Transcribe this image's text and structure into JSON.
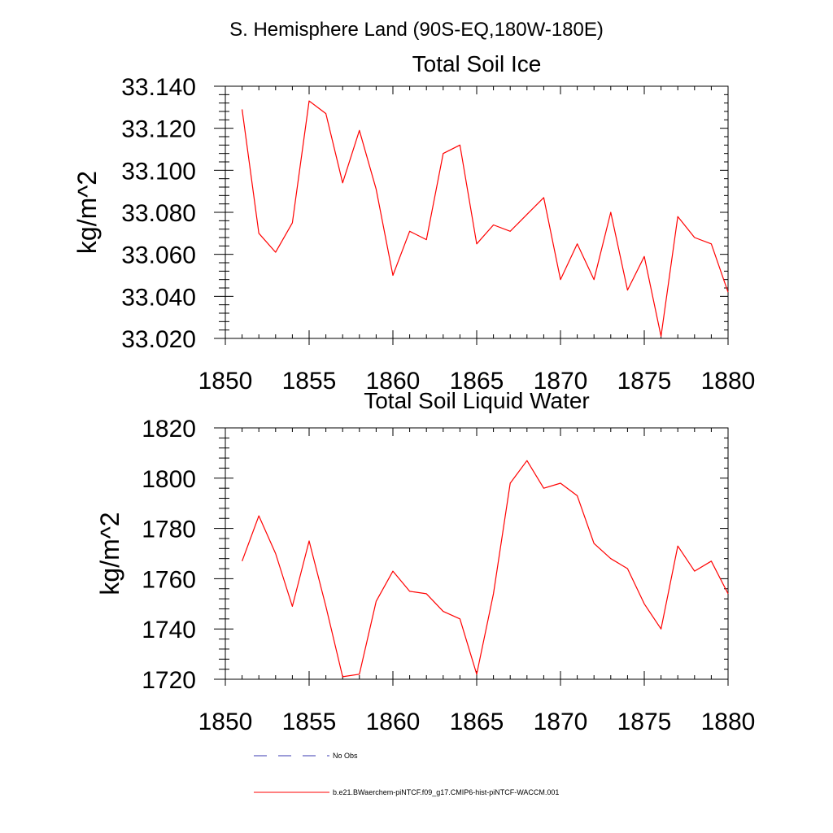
{
  "page_title": "S. Hemisphere Land (90S-EQ,180W-180E)",
  "colors": {
    "series": "#ff0000",
    "obs": "#3a3ab0",
    "axis": "#000000"
  },
  "chart_data": [
    {
      "type": "line",
      "title": "Total Soil Ice",
      "xlabel": "",
      "ylabel": "kg/m^2",
      "xlim": [
        1850,
        1880
      ],
      "ylim": [
        33.02,
        33.14
      ],
      "xticks": [
        1850,
        1855,
        1860,
        1865,
        1870,
        1875,
        1880
      ],
      "xtick_labels": [
        "1850",
        "1855",
        "1860",
        "1865",
        "1870",
        "1875",
        "1880"
      ],
      "yticks": [
        33.02,
        33.04,
        33.06,
        33.08,
        33.1,
        33.12,
        33.14
      ],
      "ytick_labels": [
        "33.020",
        "33.040",
        "33.060",
        "33.080",
        "33.100",
        "33.120",
        "33.140"
      ],
      "x": [
        1851,
        1852,
        1853,
        1854,
        1855,
        1856,
        1857,
        1858,
        1859,
        1860,
        1861,
        1862,
        1863,
        1864,
        1865,
        1866,
        1867,
        1868,
        1869,
        1870,
        1871,
        1872,
        1873,
        1874,
        1875,
        1876,
        1877,
        1878,
        1879,
        1880
      ],
      "series": [
        {
          "name": "b.e21.BWaerchem-piNTCF.f09_g17.CMIP6-hist-piNTCF-WACCM.001",
          "values": [
            33.129,
            33.07,
            33.061,
            33.075,
            33.133,
            33.127,
            33.094,
            33.119,
            33.091,
            33.05,
            33.071,
            33.067,
            33.108,
            33.112,
            33.065,
            33.074,
            33.071,
            33.079,
            33.087,
            33.048,
            33.065,
            33.048,
            33.08,
            33.043,
            33.059,
            33.021,
            33.078,
            33.068,
            33.065,
            33.042
          ]
        }
      ]
    },
    {
      "type": "line",
      "title": "Total Soil Liquid Water",
      "xlabel": "",
      "ylabel": "kg/m^2",
      "xlim": [
        1850,
        1880
      ],
      "ylim": [
        1720,
        1820
      ],
      "xticks": [
        1850,
        1855,
        1860,
        1865,
        1870,
        1875,
        1880
      ],
      "xtick_labels": [
        "1850",
        "1855",
        "1860",
        "1865",
        "1870",
        "1875",
        "1880"
      ],
      "yticks": [
        1720,
        1740,
        1760,
        1780,
        1800,
        1820
      ],
      "ytick_labels": [
        "1720",
        "1740",
        "1760",
        "1780",
        "1800",
        "1820"
      ],
      "x": [
        1851,
        1852,
        1853,
        1854,
        1855,
        1856,
        1857,
        1858,
        1859,
        1860,
        1861,
        1862,
        1863,
        1864,
        1865,
        1866,
        1867,
        1868,
        1869,
        1870,
        1871,
        1872,
        1873,
        1874,
        1875,
        1876,
        1877,
        1878,
        1879,
        1880
      ],
      "series": [
        {
          "name": "b.e21.BWaerchem-piNTCF.f09_g17.CMIP6-hist-piNTCF-WACCM.001",
          "values": [
            1767,
            1785,
            1770,
            1749,
            1775,
            1749,
            1721,
            1722,
            1751,
            1763,
            1755,
            1754,
            1747,
            1744,
            1722,
            1754,
            1798,
            1807,
            1796,
            1798,
            1793,
            1774,
            1768,
            1764,
            1750,
            1740,
            1773,
            1763,
            1767,
            1754
          ]
        }
      ]
    }
  ],
  "legend": {
    "placement": "bottom",
    "items": [
      {
        "label": "No Obs",
        "style": "dashed",
        "color": "#3a3ab0"
      },
      {
        "label": "b.e21.BWaerchem-piNTCF.f09_g17.CMIP6-hist-piNTCF-WACCM.001",
        "style": "solid",
        "color": "#ff0000"
      }
    ]
  }
}
